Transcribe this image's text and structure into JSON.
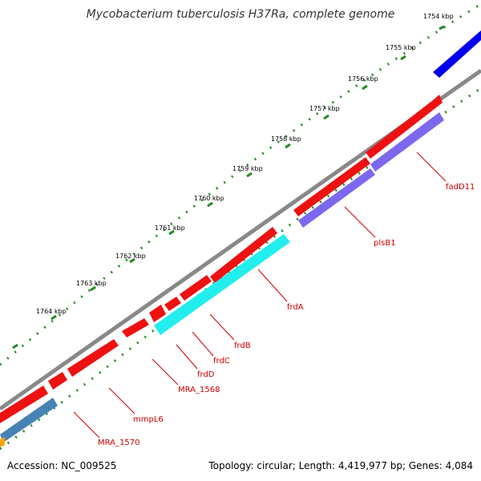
{
  "title": "Mycobacterium tuberculosis H37Ra, complete genome",
  "footer": {
    "accession": "Accession: NC_009525",
    "summary": "Topology: circular; Length: 4,419,977 bp; Genes: 4,084"
  },
  "scale_labels": [
    "1754 kbp",
    "1755 kbp",
    "1756 kbp",
    "1757 kbp",
    "1758 kbp",
    "1759 kbp",
    "1760 kbp",
    "1761 kbp",
    "1762 kbp",
    "1763 kbp",
    "1764 kbp"
  ],
  "gene_labels": [
    "fadD11",
    "plsB1",
    "frdA",
    "frdB",
    "frdC",
    "frdD",
    "MRA_1568",
    "mmpL6",
    "MRA_1570"
  ],
  "colors": {
    "forward": "#ee1111",
    "reverse_purple": "#7b68ee",
    "reverse_cyan": "#22eeee",
    "reverse_steel": "#4682b4",
    "other_blue": "#0000ee",
    "orange": "#ffa500",
    "backbone": "#888888",
    "ticks": "#228b22",
    "label_lines": "#cc0000"
  }
}
